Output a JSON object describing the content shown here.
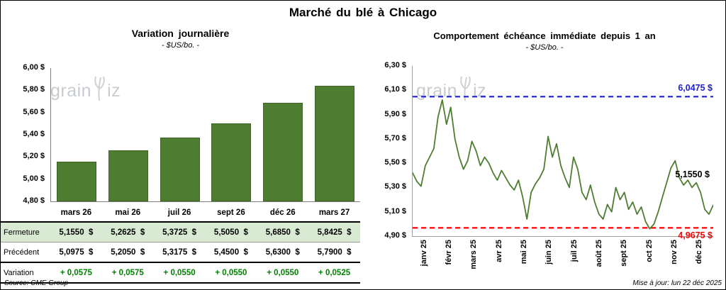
{
  "page": {
    "title": "Marché du blé à Chicago",
    "source": "Source: CME Group",
    "updated": "Mise à jour: lun 22 déc 2025",
    "watermark": {
      "part1": "grain",
      "part2": "iz"
    }
  },
  "chart_data": [
    {
      "type": "bar",
      "title": "Variation journalière",
      "subtitle": "- $US/bo. -",
      "categories": [
        "mars 26",
        "mai 26",
        "juil 26",
        "sept 26",
        "déc 26",
        "mars 27"
      ],
      "values": [
        5.155,
        5.2625,
        5.3725,
        5.505,
        5.685,
        5.8425
      ],
      "ylim": [
        4.8,
        6.0
      ],
      "ytick_labels": [
        "6,00 $",
        "5,80 $",
        "5,60 $",
        "5,40 $",
        "5,20 $",
        "5,00 $",
        "4,80 $"
      ],
      "bar_color": "#4e7d32",
      "grid": false,
      "legend": "none",
      "table": {
        "rows": [
          {
            "key": "fermeture",
            "label": "Fermeture",
            "values": [
              "5,1550  $",
              "5,2625  $",
              "5,3725  $",
              "5,5050  $",
              "5,6850  $",
              "5,8425  $"
            ]
          },
          {
            "key": "precedent",
            "label": "Précédent",
            "values": [
              "5,0975  $",
              "5,2050  $",
              "5,3175  $",
              "5,4500  $",
              "5,6300  $",
              "5,7900  $"
            ]
          },
          {
            "key": "variation",
            "label": "Variation",
            "values": [
              "+ 0,0575",
              "+ 0,0575",
              "+ 0,0550",
              "+ 0,0550",
              "+ 0,0550",
              "+ 0,0525"
            ]
          }
        ]
      }
    },
    {
      "type": "line",
      "title": "Comportement échéance immédiate depuis 1 an",
      "subtitle": "- $US/bo. -",
      "x_labels": [
        "janv 25",
        "févr 25",
        "mars 25",
        "avr 25",
        "mai 25",
        "juin 25",
        "juil 25",
        "août 25",
        "sept 25",
        "oct 25",
        "nov 25",
        "déc 25"
      ],
      "ylim": [
        4.9,
        6.3
      ],
      "ytick_labels": [
        "6,30 $",
        "6,10 $",
        "5,90 $",
        "5,70 $",
        "5,50 $",
        "5,30 $",
        "5,10 $",
        "4,90 $"
      ],
      "grid": false,
      "legend": "none",
      "series": [
        {
          "name": "échéance immédiate",
          "color": "#4e7d32",
          "values": [
            5.42,
            5.35,
            5.31,
            5.48,
            5.55,
            5.62,
            5.88,
            6.02,
            5.82,
            5.96,
            5.7,
            5.55,
            5.45,
            5.52,
            5.68,
            5.6,
            5.48,
            5.55,
            5.5,
            5.42,
            5.36,
            5.44,
            5.38,
            5.32,
            5.28,
            5.36,
            5.22,
            5.04,
            5.26,
            5.33,
            5.38,
            5.45,
            5.72,
            5.55,
            5.66,
            5.48,
            5.38,
            5.3,
            5.55,
            5.45,
            5.26,
            5.2,
            5.32,
            5.18,
            5.08,
            5.04,
            5.16,
            5.1,
            5.3,
            5.2,
            5.26,
            5.12,
            5.18,
            5.08,
            5.14,
            5.02,
            4.96,
            5.0,
            5.1,
            5.22,
            5.34,
            5.46,
            5.52,
            5.38,
            5.32,
            5.36,
            5.3,
            5.34,
            5.26,
            5.12,
            5.08,
            5.155
          ]
        }
      ],
      "hlines": [
        {
          "value": 6.0475,
          "label": "6,0475 $",
          "color": "#1f1fcc",
          "style": "dashed"
        },
        {
          "value": 4.9675,
          "label": "4,9675 $",
          "color": "#ff0000",
          "style": "dashed"
        }
      ],
      "point_label": {
        "value": 5.155,
        "label": "5,1550 $",
        "color": "#000000"
      }
    }
  ]
}
